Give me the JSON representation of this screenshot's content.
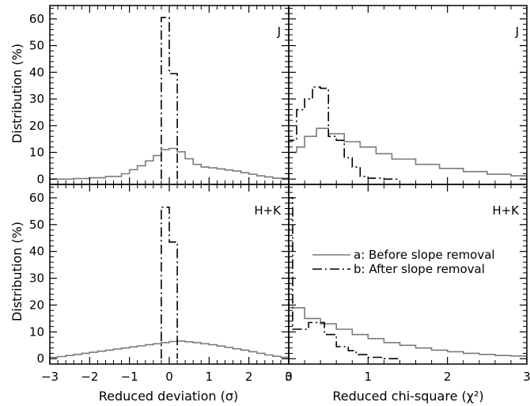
{
  "chart_data": [
    {
      "type": "step",
      "panel": "top-left",
      "label": "J",
      "xlim": [
        -3,
        3
      ],
      "ylim": [
        -2,
        65
      ],
      "xticks": [
        "−3",
        "−2",
        "−1",
        "0",
        "1",
        "2",
        "3"
      ],
      "yticks": [
        "0",
        "10",
        "20",
        "30",
        "40",
        "50",
        "60"
      ],
      "ylabel": "Distribution (%)",
      "show_x_ticklabels": false,
      "show_y_ticklabels": true,
      "series": [
        {
          "key": "a",
          "style": "solid-gray",
          "bins": [
            {
              "x0": -3.0,
              "x1": -2.4,
              "y": 0.0
            },
            {
              "x0": -2.4,
              "x1": -2.0,
              "y": 0.2
            },
            {
              "x0": -2.0,
              "x1": -1.6,
              "y": 0.5
            },
            {
              "x0": -1.6,
              "x1": -1.2,
              "y": 1.0
            },
            {
              "x0": -1.2,
              "x1": -1.0,
              "y": 2.0
            },
            {
              "x0": -1.0,
              "x1": -0.8,
              "y": 3.5
            },
            {
              "x0": -0.8,
              "x1": -0.6,
              "y": 5.0
            },
            {
              "x0": -0.6,
              "x1": -0.4,
              "y": 6.8
            },
            {
              "x0": -0.4,
              "x1": -0.2,
              "y": 8.8
            },
            {
              "x0": -0.2,
              "x1": 0.0,
              "y": 11.0
            },
            {
              "x0": 0.0,
              "x1": 0.2,
              "y": 11.5
            },
            {
              "x0": 0.2,
              "x1": 0.4,
              "y": 10.2
            },
            {
              "x0": 0.4,
              "x1": 0.6,
              "y": 7.6
            },
            {
              "x0": 0.6,
              "x1": 0.8,
              "y": 5.5
            },
            {
              "x0": 0.8,
              "x1": 1.0,
              "y": 4.5
            },
            {
              "x0": 1.0,
              "x1": 1.2,
              "y": 4.2
            },
            {
              "x0": 1.2,
              "x1": 1.4,
              "y": 3.8
            },
            {
              "x0": 1.4,
              "x1": 1.6,
              "y": 3.4
            },
            {
              "x0": 1.6,
              "x1": 1.8,
              "y": 3.0
            },
            {
              "x0": 1.8,
              "x1": 2.0,
              "y": 2.4
            },
            {
              "x0": 2.0,
              "x1": 2.2,
              "y": 1.8
            },
            {
              "x0": 2.2,
              "x1": 2.4,
              "y": 1.2
            },
            {
              "x0": 2.4,
              "x1": 2.6,
              "y": 0.8
            },
            {
              "x0": 2.6,
              "x1": 3.0,
              "y": 0.3
            }
          ]
        },
        {
          "key": "b",
          "style": "dash-dot-black",
          "bins": [
            {
              "x0": -0.2,
              "x1": 0.0,
              "y": 60.5
            },
            {
              "x0": 0.0,
              "x1": 0.2,
              "y": 39.5
            }
          ]
        }
      ]
    },
    {
      "type": "step",
      "panel": "top-right",
      "label": "J",
      "xlim": [
        0,
        3
      ],
      "ylim": [
        -2,
        65
      ],
      "xticks": [
        "0",
        "1",
        "2",
        "3"
      ],
      "show_x_ticklabels": false,
      "show_y_ticklabels": false,
      "series": [
        {
          "key": "a",
          "style": "solid-gray",
          "bins": [
            {
              "x0": 0.0,
              "x1": 0.1,
              "y": 10.0
            },
            {
              "x0": 0.1,
              "x1": 0.2,
              "y": 12.0
            },
            {
              "x0": 0.2,
              "x1": 0.35,
              "y": 16.0
            },
            {
              "x0": 0.35,
              "x1": 0.5,
              "y": 19.0
            },
            {
              "x0": 0.5,
              "x1": 0.7,
              "y": 17.0
            },
            {
              "x0": 0.7,
              "x1": 0.9,
              "y": 14.0
            },
            {
              "x0": 0.9,
              "x1": 1.1,
              "y": 12.0
            },
            {
              "x0": 1.1,
              "x1": 1.3,
              "y": 9.5
            },
            {
              "x0": 1.3,
              "x1": 1.6,
              "y": 7.5
            },
            {
              "x0": 1.6,
              "x1": 1.9,
              "y": 5.5
            },
            {
              "x0": 1.9,
              "x1": 2.2,
              "y": 4.0
            },
            {
              "x0": 2.2,
              "x1": 2.5,
              "y": 2.8
            },
            {
              "x0": 2.5,
              "x1": 2.8,
              "y": 1.8
            },
            {
              "x0": 2.8,
              "x1": 3.0,
              "y": 1.2
            }
          ]
        },
        {
          "key": "b",
          "style": "dash-dot-black",
          "bins": [
            {
              "x0": 0.0,
              "x1": 0.1,
              "y": 14.5
            },
            {
              "x0": 0.1,
              "x1": 0.2,
              "y": 26.0
            },
            {
              "x0": 0.2,
              "x1": 0.3,
              "y": 30.0
            },
            {
              "x0": 0.3,
              "x1": 0.4,
              "y": 34.5
            },
            {
              "x0": 0.4,
              "x1": 0.5,
              "y": 34.0
            },
            {
              "x0": 0.5,
              "x1": 0.6,
              "y": 16.0
            },
            {
              "x0": 0.6,
              "x1": 0.7,
              "y": 14.5
            },
            {
              "x0": 0.7,
              "x1": 0.8,
              "y": 8.0
            },
            {
              "x0": 0.8,
              "x1": 0.9,
              "y": 4.5
            },
            {
              "x0": 0.9,
              "x1": 1.0,
              "y": 1.0
            },
            {
              "x0": 1.0,
              "x1": 1.2,
              "y": 0.3
            },
            {
              "x0": 1.2,
              "x1": 1.4,
              "y": 0.0
            }
          ]
        }
      ]
    },
    {
      "type": "step",
      "panel": "bottom-left",
      "label": "H+K",
      "xlim": [
        -3,
        3
      ],
      "ylim": [
        -2,
        65
      ],
      "xticks": [
        "−3",
        "−2",
        "−1",
        "0",
        "1",
        "2",
        "3"
      ],
      "yticks": [
        "0",
        "10",
        "20",
        "30",
        "40",
        "50",
        "60"
      ],
      "xlabel": "Reduced deviation (σ)",
      "ylabel": "Distribution (%)",
      "show_x_ticklabels": true,
      "show_y_ticklabels": true,
      "series": [
        {
          "key": "a",
          "style": "solid-gray",
          "bins": [
            {
              "x0": -3.0,
              "x1": -2.8,
              "y": 0.5
            },
            {
              "x0": -2.8,
              "x1": -2.6,
              "y": 0.8
            },
            {
              "x0": -2.6,
              "x1": -2.4,
              "y": 1.2
            },
            {
              "x0": -2.4,
              "x1": -2.2,
              "y": 1.6
            },
            {
              "x0": -2.2,
              "x1": -2.0,
              "y": 2.0
            },
            {
              "x0": -2.0,
              "x1": -1.8,
              "y": 2.4
            },
            {
              "x0": -1.8,
              "x1": -1.6,
              "y": 2.8
            },
            {
              "x0": -1.6,
              "x1": -1.4,
              "y": 3.2
            },
            {
              "x0": -1.4,
              "x1": -1.2,
              "y": 3.6
            },
            {
              "x0": -1.2,
              "x1": -1.0,
              "y": 4.0
            },
            {
              "x0": -1.0,
              "x1": -0.8,
              "y": 4.4
            },
            {
              "x0": -0.8,
              "x1": -0.6,
              "y": 4.8
            },
            {
              "x0": -0.6,
              "x1": -0.4,
              "y": 5.2
            },
            {
              "x0": -0.4,
              "x1": -0.2,
              "y": 5.6
            },
            {
              "x0": -0.2,
              "x1": 0.0,
              "y": 6.0
            },
            {
              "x0": 0.0,
              "x1": 0.2,
              "y": 6.4
            },
            {
              "x0": 0.2,
              "x1": 0.4,
              "y": 6.6
            },
            {
              "x0": 0.4,
              "x1": 0.6,
              "y": 6.3
            },
            {
              "x0": 0.6,
              "x1": 0.8,
              "y": 6.0
            },
            {
              "x0": 0.8,
              "x1": 1.0,
              "y": 5.6
            },
            {
              "x0": 1.0,
              "x1": 1.2,
              "y": 5.2
            },
            {
              "x0": 1.2,
              "x1": 1.4,
              "y": 4.7
            },
            {
              "x0": 1.4,
              "x1": 1.6,
              "y": 4.2
            },
            {
              "x0": 1.6,
              "x1": 1.8,
              "y": 3.7
            },
            {
              "x0": 1.8,
              "x1": 2.0,
              "y": 3.2
            },
            {
              "x0": 2.0,
              "x1": 2.2,
              "y": 2.6
            },
            {
              "x0": 2.2,
              "x1": 2.4,
              "y": 2.0
            },
            {
              "x0": 2.4,
              "x1": 2.6,
              "y": 1.4
            },
            {
              "x0": 2.6,
              "x1": 2.8,
              "y": 0.9
            },
            {
              "x0": 2.8,
              "x1": 3.0,
              "y": 0.5
            }
          ]
        },
        {
          "key": "b",
          "style": "dash-dot-black",
          "bins": [
            {
              "x0": -0.2,
              "x1": 0.0,
              "y": 56.5
            },
            {
              "x0": 0.0,
              "x1": 0.2,
              "y": 43.5
            }
          ]
        }
      ]
    },
    {
      "type": "step",
      "panel": "bottom-right",
      "label": "H+K",
      "xlim": [
        0,
        3
      ],
      "ylim": [
        -2,
        65
      ],
      "xticks": [
        "0",
        "1",
        "2",
        "3"
      ],
      "xlabel": "Reduced chi-square (χ²)",
      "show_x_ticklabels": true,
      "show_y_ticklabels": false,
      "legend": {
        "position": "center-right",
        "entries": [
          {
            "key": "a",
            "label": "a: Before slope removal"
          },
          {
            "key": "b",
            "label": "b: After slope removal"
          }
        ]
      },
      "series": [
        {
          "key": "a",
          "style": "solid-gray",
          "bins": [
            {
              "x0": 0.0,
              "x1": 0.2,
              "y": 19.0
            },
            {
              "x0": 0.2,
              "x1": 0.4,
              "y": 15.0
            },
            {
              "x0": 0.4,
              "x1": 0.6,
              "y": 13.0
            },
            {
              "x0": 0.6,
              "x1": 0.8,
              "y": 11.0
            },
            {
              "x0": 0.8,
              "x1": 1.0,
              "y": 9.0
            },
            {
              "x0": 1.0,
              "x1": 1.2,
              "y": 7.5
            },
            {
              "x0": 1.2,
              "x1": 1.4,
              "y": 6.0
            },
            {
              "x0": 1.4,
              "x1": 1.6,
              "y": 5.0
            },
            {
              "x0": 1.6,
              "x1": 1.8,
              "y": 4.0
            },
            {
              "x0": 1.8,
              "x1": 2.0,
              "y": 3.2
            },
            {
              "x0": 2.0,
              "x1": 2.2,
              "y": 2.6
            },
            {
              "x0": 2.2,
              "x1": 2.4,
              "y": 2.0
            },
            {
              "x0": 2.4,
              "x1": 2.6,
              "y": 1.6
            },
            {
              "x0": 2.6,
              "x1": 2.8,
              "y": 1.2
            },
            {
              "x0": 2.8,
              "x1": 3.0,
              "y": 1.0
            }
          ]
        },
        {
          "key": "b",
          "style": "dash-dot-black",
          "bins": [
            {
              "x0": 0.0,
              "x1": 0.05,
              "y": 60.0
            },
            {
              "x0": 0.05,
              "x1": 0.25,
              "y": 11.0
            },
            {
              "x0": 0.25,
              "x1": 0.45,
              "y": 13.5
            },
            {
              "x0": 0.45,
              "x1": 0.6,
              "y": 9.0
            },
            {
              "x0": 0.6,
              "x1": 0.75,
              "y": 4.5
            },
            {
              "x0": 0.75,
              "x1": 0.85,
              "y": 3.0
            },
            {
              "x0": 0.85,
              "x1": 1.0,
              "y": 1.5
            },
            {
              "x0": 1.0,
              "x1": 1.2,
              "y": 0.5
            },
            {
              "x0": 1.2,
              "x1": 1.4,
              "y": 0.0
            }
          ]
        }
      ]
    }
  ],
  "styles": {
    "solid-gray": {
      "color": "#7a7a7a",
      "dash": ""
    },
    "dash-dot-black": {
      "color": "#000000",
      "dash": "12,4,2,4"
    }
  }
}
